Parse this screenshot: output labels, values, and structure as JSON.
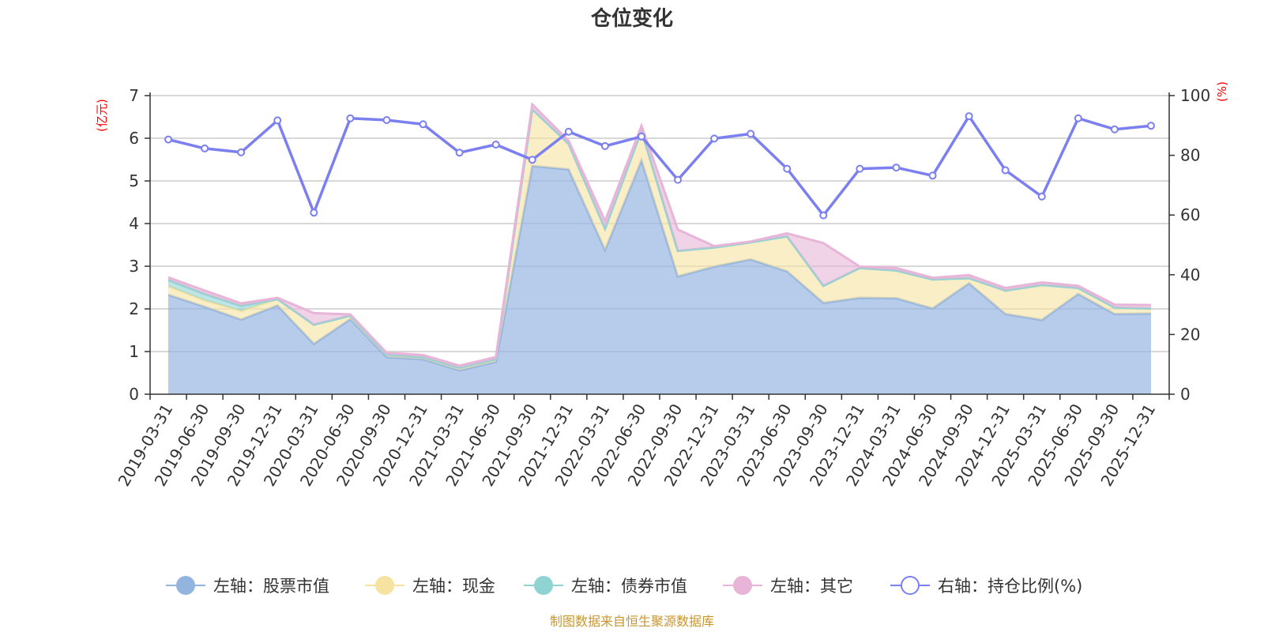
{
  "title": "仓位变化",
  "source": "制图数据来自恒生聚源数据库",
  "colors": {
    "stock": "#94b4e0",
    "cash": "#f6e3a1",
    "bond": "#8fd3d3",
    "other": "#e8b5d9",
    "ratio": "#7b7ff0"
  },
  "chart_data": {
    "type": "area",
    "title": "仓位变化",
    "left_axis_unit": "(亿元)",
    "right_axis_unit": "(%)",
    "ylim_left": [
      0,
      7
    ],
    "yticks_left": [
      "0",
      "1",
      "2",
      "3",
      "4",
      "5",
      "6",
      "7"
    ],
    "ylim_right": [
      0,
      100
    ],
    "yticks_right": [
      "0",
      "20",
      "40",
      "60",
      "80",
      "100"
    ],
    "grid": true,
    "legend_position": "bottom",
    "stacked": true,
    "categories": [
      "2019-03-31",
      "2019-06-30",
      "2019-09-30",
      "2019-12-31",
      "2020-03-31",
      "2020-06-30",
      "2020-09-30",
      "2020-12-31",
      "2021-03-31",
      "2021-06-30",
      "2021-09-30",
      "2021-12-31",
      "2022-03-31",
      "2022-06-30",
      "2022-09-30",
      "2022-12-31",
      "2023-03-31",
      "2023-06-30",
      "2023-09-30",
      "2023-12-31",
      "2024-03-31",
      "2024-06-30",
      "2024-09-30",
      "2024-12-31",
      "2025-03-31",
      "2025-06-30",
      "2025-09-30",
      "2025-12-31"
    ],
    "series": [
      {
        "name": "左轴：股票市值",
        "axis": "left",
        "type": "area",
        "values": [
          2.33,
          2.05,
          1.75,
          2.08,
          1.18,
          1.76,
          0.87,
          0.82,
          0.56,
          0.76,
          5.35,
          5.27,
          3.38,
          5.48,
          2.76,
          2.99,
          3.16,
          2.88,
          2.14,
          2.26,
          2.25,
          2.01,
          2.6,
          1.88,
          1.74,
          2.35,
          1.88,
          1.89
        ]
      },
      {
        "name": "左轴：现金",
        "axis": "left",
        "type": "area",
        "values": [
          0.2,
          0.15,
          0.2,
          0.15,
          0.45,
          0.08,
          0.06,
          0.05,
          0.06,
          0.06,
          1.33,
          0.6,
          0.5,
          0.7,
          0.6,
          0.45,
          0.4,
          0.82,
          0.4,
          0.7,
          0.65,
          0.68,
          0.12,
          0.55,
          0.82,
          0.14,
          0.15,
          0.12
        ]
      },
      {
        "name": "左轴：债券市值",
        "axis": "left",
        "type": "area",
        "values": [
          0.15,
          0.15,
          0.12,
          0,
          0,
          0,
          0,
          0,
          0,
          0,
          0,
          0,
          0,
          0,
          0,
          0,
          0,
          0,
          0,
          0,
          0,
          0,
          0,
          0,
          0,
          0,
          0,
          0
        ]
      },
      {
        "name": "左轴：其它",
        "axis": "left",
        "type": "area",
        "values": [
          0.06,
          0.08,
          0.06,
          0.03,
          0.27,
          0.03,
          0.04,
          0.05,
          0.05,
          0.05,
          0.11,
          0.07,
          0.18,
          0.11,
          0.5,
          0.03,
          0.02,
          0.07,
          1.0,
          0.03,
          0.06,
          0.04,
          0.07,
          0.06,
          0.06,
          0.05,
          0.07,
          0.08
        ]
      },
      {
        "name": "右轴：持仓比例(%)",
        "axis": "right",
        "type": "line",
        "values": [
          85.3,
          82.3,
          81.0,
          91.7,
          60.8,
          92.4,
          91.8,
          90.4,
          80.9,
          83.6,
          78.5,
          87.9,
          83.1,
          86.3,
          71.8,
          85.6,
          87.2,
          75.5,
          59.9,
          75.5,
          75.9,
          73.2,
          93.1,
          75.0,
          66.2,
          92.4,
          88.7,
          89.9
        ]
      }
    ]
  }
}
